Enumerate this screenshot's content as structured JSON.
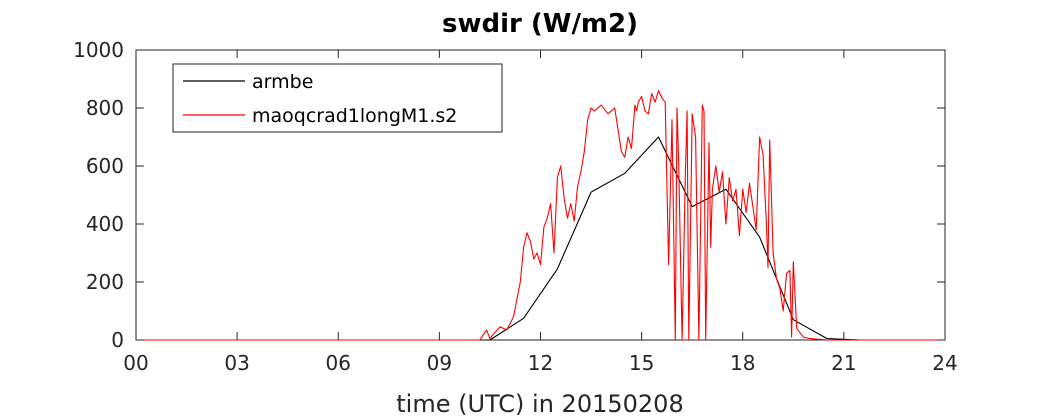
{
  "chart_data": {
    "type": "line",
    "title": "swdir  (W/m2)",
    "xlabel": "time (UTC) in 20150208",
    "ylabel": "",
    "xlim": [
      0,
      24
    ],
    "ylim": [
      0,
      1000
    ],
    "x_ticks": [
      "00",
      "03",
      "06",
      "09",
      "12",
      "15",
      "18",
      "21",
      "24"
    ],
    "y_ticks": [
      "0",
      "200",
      "400",
      "600",
      "800",
      "1000"
    ],
    "grid": false,
    "legend_position": "top-left",
    "series": [
      {
        "name": "armbe",
        "color": "#000000",
        "x": [
          0,
          1,
          2,
          3,
          4,
          5,
          6,
          7,
          8,
          9,
          10,
          10.5,
          11.5,
          12.5,
          13.5,
          14.5,
          15.5,
          16.5,
          17.5,
          18.5,
          19.5,
          20.5,
          21.5,
          22.5,
          23.5,
          24
        ],
        "y": [
          0,
          0,
          0,
          0,
          0,
          0,
          0,
          0,
          0,
          0,
          0,
          0,
          75,
          245,
          510,
          575,
          700,
          460,
          520,
          355,
          70,
          5,
          0,
          0,
          0,
          0
        ]
      },
      {
        "name": "maoqcrad1longM1.s2",
        "color": "#ff0000",
        "x": [
          0,
          10.2,
          10.4,
          10.5,
          10.6,
          10.8,
          11.0,
          11.2,
          11.4,
          11.5,
          11.6,
          11.7,
          11.8,
          11.9,
          12.0,
          12.1,
          12.2,
          12.3,
          12.4,
          12.5,
          12.6,
          12.7,
          12.8,
          12.9,
          13.0,
          13.1,
          13.2,
          13.3,
          13.4,
          13.5,
          13.6,
          13.8,
          14.0,
          14.2,
          14.4,
          14.5,
          14.6,
          14.7,
          14.8,
          14.85,
          14.9,
          15.0,
          15.1,
          15.2,
          15.3,
          15.4,
          15.5,
          15.6,
          15.7,
          15.8,
          15.9,
          16.0,
          16.05,
          16.1,
          16.2,
          16.3,
          16.35,
          16.4,
          16.5,
          16.6,
          16.7,
          16.8,
          16.85,
          16.9,
          17.0,
          17.05,
          17.1,
          17.2,
          17.3,
          17.4,
          17.5,
          17.6,
          17.7,
          17.8,
          17.9,
          18.0,
          18.1,
          18.2,
          18.3,
          18.4,
          18.5,
          18.6,
          18.7,
          18.75,
          18.8,
          18.9,
          19.0,
          19.1,
          19.2,
          19.3,
          19.4,
          19.45,
          19.5,
          19.6,
          19.8,
          20.0,
          20.5,
          21.0,
          22.0,
          24.0
        ],
        "y": [
          0,
          0,
          35,
          5,
          20,
          45,
          35,
          80,
          200,
          320,
          370,
          340,
          280,
          300,
          260,
          390,
          420,
          470,
          300,
          560,
          600,
          490,
          420,
          470,
          410,
          530,
          580,
          650,
          760,
          800,
          790,
          810,
          780,
          800,
          650,
          630,
          700,
          660,
          810,
          790,
          820,
          840,
          790,
          780,
          850,
          820,
          860,
          835,
          820,
          260,
          760,
          0,
          800,
          610,
          0,
          580,
          790,
          0,
          780,
          700,
          0,
          810,
          790,
          0,
          680,
          320,
          520,
          600,
          510,
          580,
          400,
          560,
          480,
          520,
          360,
          520,
          440,
          540,
          460,
          380,
          700,
          640,
          410,
          250,
          690,
          300,
          210,
          180,
          100,
          230,
          240,
          10,
          270,
          40,
          10,
          5,
          0,
          0,
          0,
          0
        ]
      }
    ]
  }
}
